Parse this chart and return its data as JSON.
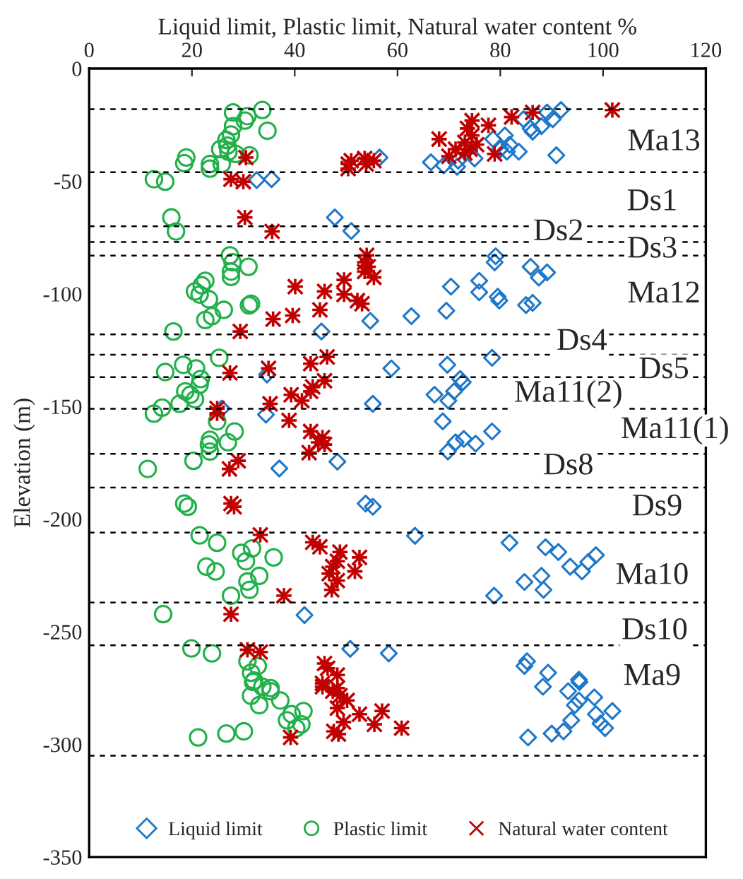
{
  "chart_data": {
    "type": "scatter",
    "xlabel": "Liquid limit, Plastic limit, Natural water content %",
    "ylabel": "Elevation (m)",
    "xlim": [
      0,
      120
    ],
    "xticks": [
      0,
      20,
      40,
      60,
      80,
      100,
      120
    ],
    "ylim": [
      -350,
      0
    ],
    "yticks": [
      -350,
      -300,
      -250,
      -200,
      -150,
      -100,
      -50,
      0
    ],
    "grid": false,
    "legend": "bottom",
    "series": [
      {
        "name": "Liquid limit",
        "color": "#1f77c8",
        "marker": "diamond",
        "x": [
          90.9,
          91.8,
          89.1,
          90.2,
          84.5,
          85.9,
          88,
          86.3,
          78.6,
          80.9,
          81.8,
          80,
          81.3,
          83.6,
          75,
          71.8,
          66.5,
          69,
          71.6,
          56.5,
          32.6,
          35.5,
          47.8,
          51,
          79.1,
          78.9,
          85.9,
          89.1,
          87.5,
          75.9,
          70.4,
          75.9,
          79.5,
          79.8,
          86.3,
          85,
          69.5,
          62.7,
          54.7,
          45.2,
          78.4,
          69.7,
          58.8,
          34.6,
          72.2,
          72.7,
          71,
          67.2,
          69.9,
          25.8,
          55.2,
          34.4,
          68.8,
          78.4,
          71.3,
          72.9,
          75.2,
          69.8,
          48.3,
          37,
          53.8,
          55.2,
          63.4,
          81.8,
          88.8,
          91.3,
          93.6,
          95.9,
          97.1,
          98.6,
          88,
          84.7,
          88.4,
          78.8,
          41.9,
          50.8,
          58.3,
          85.2,
          84.7,
          89.3,
          95.3,
          88.3,
          93.2,
          95.4,
          98.3,
          95.3,
          94.5,
          98.6,
          101.8,
          93.8,
          99.5,
          100.4,
          92.3,
          90,
          85.4
        ],
        "values": [
          -38.5,
          -18.4,
          -19.5,
          -22.5,
          -22.5,
          -26.6,
          -25.6,
          -28,
          -31.3,
          -29.7,
          -33.8,
          -35.8,
          -36.9,
          -36.9,
          -39.9,
          -40.9,
          -41.6,
          -43,
          -43.6,
          -39.5,
          -49.5,
          -49.1,
          -66.1,
          -72.1,
          -83.3,
          -86,
          -88,
          -90.5,
          -92.8,
          -94.2,
          -96.8,
          -99.3,
          -101.3,
          -103,
          -104,
          -105,
          -107.5,
          -109.9,
          -112,
          -116.7,
          -128.4,
          -131.5,
          -133.1,
          -135.8,
          -137.8,
          -139.2,
          -143.3,
          -144.8,
          -147.4,
          -150.9,
          -148.8,
          -153.6,
          -156.6,
          -161.1,
          -165.9,
          -164.4,
          -166.5,
          -170,
          -174.5,
          -177.5,
          -193.1,
          -194.5,
          -207.4,
          -210.5,
          -212.5,
          -214.6,
          -221.1,
          -223.2,
          -219.1,
          -216,
          -225.2,
          -227.9,
          -231.4,
          -234,
          -242.6,
          -257.6,
          -259.6,
          -263.1,
          -265.2,
          -268.2,
          -271.3,
          -274.4,
          -276.4,
          -272.3,
          -279.1,
          -280.5,
          -282.6,
          -286.6,
          -285.2,
          -289.3,
          -290.7,
          -292.8,
          -294.2,
          -295.2,
          -296.9
        ]
      },
      {
        "name": "Plastic limit",
        "color": "#22b04b",
        "marker": "circle",
        "x": [
          33.7,
          28,
          30.8,
          30.3,
          28,
          34.7,
          27.6,
          26.7,
          26.9,
          27.1,
          25.5,
          31.2,
          28.5,
          18.9,
          18.5,
          23.5,
          25.8,
          23.5,
          12.6,
          14.8,
          16,
          16.9,
          27.4,
          27.9,
          31,
          27.6,
          27.6,
          22.6,
          21.9,
          20.6,
          21.5,
          23.3,
          26.2,
          31.1,
          31.5,
          23.9,
          22.6,
          16.4,
          25.3,
          18.3,
          14.8,
          20.8,
          21.7,
          21.5,
          18.7,
          19.7,
          20.6,
          17.6,
          14.2,
          12.6,
          24.9,
          28.3,
          27,
          23.5,
          23.3,
          23.5,
          20.3,
          11.4,
          18.5,
          19.2,
          21.5,
          24.9,
          31.7,
          29.6,
          35.9,
          30.5,
          22.8,
          24.6,
          33.1,
          30.8,
          31.2,
          27.6,
          14.4,
          19.9,
          23.9,
          30.8,
          32.8,
          31.5,
          32.1,
          35.3,
          31.9,
          33.7,
          35.3,
          37.2,
          31.5,
          33.1,
          41.7,
          39.4,
          38.5,
          41.3,
          40.3,
          30.1,
          26.7,
          21.2
        ],
        "values": [
          -18.4,
          -19.5,
          -21.1,
          -23.1,
          -25.6,
          -27.6,
          -29.3,
          -31.7,
          -34.2,
          -36.9,
          -35.8,
          -38.5,
          -37.9,
          -39.5,
          -42,
          -42.4,
          -42.4,
          -44.4,
          -49.1,
          -50.2,
          -66.1,
          -72.3,
          -82.9,
          -86,
          -88,
          -90.1,
          -92.5,
          -94.2,
          -96.2,
          -98.9,
          -100.3,
          -102.4,
          -107.1,
          -105.1,
          -104.4,
          -109.9,
          -111.6,
          -116.7,
          -128.4,
          -131.5,
          -134.7,
          -133.1,
          -137.8,
          -140.3,
          -143.3,
          -144.8,
          -146.8,
          -148.8,
          -150.5,
          -153.2,
          -156.6,
          -161.1,
          -165.9,
          -164.8,
          -166.9,
          -170,
          -174.1,
          -177.7,
          -193.1,
          -194.5,
          -207.2,
          -210.5,
          -213,
          -215,
          -217,
          -218.7,
          -221.1,
          -223.2,
          -225.2,
          -227.7,
          -231.4,
          -234,
          -242.2,
          -257.4,
          -259.6,
          -263.1,
          -265.2,
          -268.2,
          -271.7,
          -275,
          -272.3,
          -274.4,
          -276.4,
          -280.5,
          -278.4,
          -282.6,
          -285.2,
          -286.6,
          -289.3,
          -291.1,
          -292.8,
          -294.2,
          -295.2,
          -296.9
        ]
      },
      {
        "name": "Natural water content",
        "color": "#c00000",
        "marker": "cross",
        "x": [
          101.8,
          86.3,
          82.2,
          74.5,
          77.7,
          73.6,
          74.5,
          68.1,
          73.1,
          75.4,
          71.3,
          74.1,
          78.9,
          73.1,
          70,
          30.5,
          53.6,
          55.4,
          51,
          50.4,
          53.9,
          50.4,
          27.6,
          30,
          30.3,
          35.6,
          54,
          53.6,
          54.3,
          53.6,
          55.4,
          40.1,
          45.8,
          49.6,
          49.6,
          52.2,
          53.1,
          44.9,
          39.6,
          35.8,
          29.4,
          46.3,
          43.1,
          34.9,
          27.4,
          45.8,
          43.5,
          43.1,
          39.3,
          41.4,
          35.2,
          24.9,
          24.9,
          38.9,
          43.1,
          45.4,
          44.6,
          45.8,
          42.8,
          29,
          27.3,
          27.6,
          28.2,
          33.3,
          43.5,
          44.9,
          48.8,
          52.6,
          48.3,
          47.4,
          51.7,
          46.7,
          48.3,
          47.2,
          37.9,
          27.6,
          30.8,
          33.3,
          45.8,
          46.4,
          48.3,
          45.4,
          48.3,
          45.4,
          47.4,
          48.8,
          50.2,
          48.3,
          52.6,
          57,
          49.5,
          55.5,
          60.8,
          47.6,
          48.5,
          39.2
        ],
        "values": [
          -18.4,
          -19.5,
          -21.5,
          -23.1,
          -25.2,
          -26.6,
          -29.7,
          -31.3,
          -32.8,
          -33.8,
          -35.8,
          -35.8,
          -37.9,
          -37.5,
          -38.9,
          -39.5,
          -39.9,
          -40.9,
          -40.9,
          -42.4,
          -42.4,
          -44.4,
          -49.1,
          -50.2,
          -66.1,
          -72.3,
          -82.9,
          -86,
          -88,
          -90.1,
          -92.7,
          -96.8,
          -98.9,
          -93.8,
          -100.3,
          -103,
          -104.4,
          -107.1,
          -109.6,
          -111.2,
          -116.7,
          -128,
          -131,
          -133.1,
          -135.1,
          -138.6,
          -141.3,
          -143.3,
          -144.8,
          -147.4,
          -148.8,
          -150.9,
          -153,
          -156.2,
          -161.1,
          -163.8,
          -165.9,
          -166.9,
          -170.5,
          -174.1,
          -177.7,
          -193.1,
          -194.5,
          -207,
          -210.3,
          -212.3,
          -214.6,
          -217,
          -218.7,
          -221.1,
          -223.2,
          -224.2,
          -227.3,
          -231.4,
          -234,
          -242.2,
          -258,
          -259,
          -264.1,
          -266.2,
          -269.2,
          -272.9,
          -275,
          -274.4,
          -276.4,
          -278.4,
          -280.5,
          -283.9,
          -286.6,
          -285.2,
          -290.1,
          -291.1,
          -292.8,
          -294.2,
          -295.4,
          -296.9
        ]
      }
    ],
    "ref_lines": [
      {
        "axis": "y",
        "value": -18,
        "color": "#000000",
        "line_style": "dashed"
      },
      {
        "axis": "y",
        "value": -46,
        "color": "#000000",
        "line_style": "dashed"
      },
      {
        "axis": "y",
        "value": -70,
        "color": "#000000",
        "line_style": "dashed"
      },
      {
        "axis": "y",
        "value": -77,
        "color": "#000000",
        "line_style": "dashed"
      },
      {
        "axis": "y",
        "value": -83,
        "color": "#000000",
        "line_style": "dashed"
      },
      {
        "axis": "y",
        "value": -118,
        "color": "#000000",
        "line_style": "dashed"
      },
      {
        "axis": "y",
        "value": -127,
        "color": "#000000",
        "line_style": "dashed"
      },
      {
        "axis": "y",
        "value": -137,
        "color": "#000000",
        "line_style": "dashed"
      },
      {
        "axis": "y",
        "value": -151,
        "color": "#000000",
        "line_style": "dashed"
      },
      {
        "axis": "y",
        "value": -171,
        "color": "#000000",
        "line_style": "dashed"
      },
      {
        "axis": "y",
        "value": -186,
        "color": "#000000",
        "line_style": "dashed"
      },
      {
        "axis": "y",
        "value": -206,
        "color": "#000000",
        "line_style": "dashed"
      },
      {
        "axis": "y",
        "value": -237,
        "color": "#000000",
        "line_style": "dashed"
      },
      {
        "axis": "y",
        "value": -256,
        "color": "#000000",
        "line_style": "dashed"
      },
      {
        "axis": "y",
        "value": -305,
        "color": "#000000",
        "line_style": "dashed"
      }
    ],
    "annotations": [
      "Ma13",
      "Ds1",
      "Ds2",
      "Ds3",
      "Ma12",
      "Ds4",
      "Ds5",
      "Ma11(2)",
      "Ma11(1)",
      "Ds8",
      "Ds9",
      "Ma10",
      "Ds10",
      "Ma9"
    ]
  }
}
